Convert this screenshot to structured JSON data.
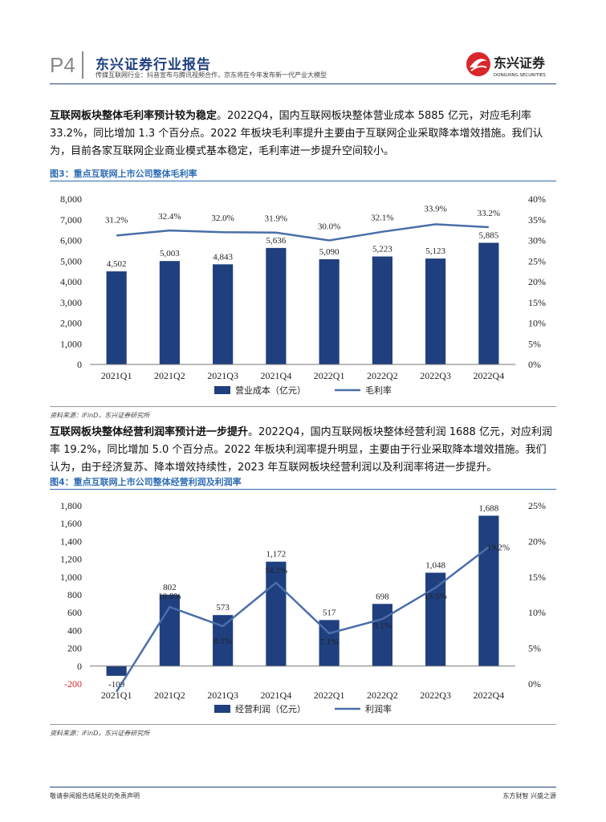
{
  "header": {
    "page_no": "P4",
    "report_title": "东兴证券行业报告",
    "subtitle": "传媒互联网行业：抖音宣布与腾讯视频合作，京东将在今年发布新一代产业大模型",
    "logo_text": "东兴证券",
    "logo_en": "DONGXING SECURITIES"
  },
  "para1": {
    "bold": "互联网板块整体毛利率预计较为稳定",
    "text": "。2022Q4，国内互联网板块整体营业成本 5885 亿元，对应毛利率 33.2%，同比增加 1.3 个百分点。2022 年板块毛利率提升主要由于互联网企业采取降本增效措施。我们认为，目前各家互联网企业商业模式基本稳定，毛利率进一步提升空间较小。"
  },
  "fig3": {
    "label": "图3：重点互联网上市公司整体毛利率"
  },
  "source1": "资料来源：iFinD，东兴证券研究所",
  "para2": {
    "bold": "互联网板块整体经营利润率预计进一步提升",
    "text": "。2022Q4，国内互联网板块整体经营利润 1688 亿元，对应利润率 19.2%，同比增加 5.0 个百分点。2022 年板块利润率提升明显，主要由于行业采取降本增效措施。我们认为，由于经济复苏、降本增效持续性，2023 年互联网板块经营利润以及利润率将进一步提升。"
  },
  "fig4": {
    "label": "图4：重点互联网上市公司整体经营利润及利润率"
  },
  "source2": "资料来源：iFinD，东兴证券研究所",
  "footer": {
    "left": "敬请参阅报告结尾处的免责声明",
    "right": "东方财智 兴盛之源"
  },
  "colors": {
    "bar": "#1f3f7f",
    "line": "#4a6ea9",
    "accent": "#2e6db5",
    "negative": "#d9262b"
  },
  "chart_data": [
    {
      "type": "bar",
      "categories": [
        "2021Q1",
        "2021Q2",
        "2021Q3",
        "2021Q4",
        "2022Q1",
        "2022Q2",
        "2022Q3",
        "2022Q4"
      ],
      "series": [
        {
          "name": "营业成本（亿元）",
          "type": "bar",
          "axis": "left",
          "values": [
            4502,
            5003,
            4843,
            5636,
            5090,
            5223,
            5123,
            5885
          ],
          "labels": [
            "4,502",
            "5,003",
            "4,843",
            "5,636",
            "5,090",
            "5,223",
            "5,123",
            "5,885"
          ]
        },
        {
          "name": "毛利率",
          "type": "line",
          "axis": "right",
          "values": [
            31.2,
            32.4,
            32.0,
            31.9,
            30.0,
            32.1,
            33.9,
            33.2
          ],
          "labels": [
            "31.2%",
            "32.4%",
            "32.0%",
            "31.9%",
            "30.0%",
            "32.1%",
            "33.9%",
            "33.2%"
          ]
        }
      ],
      "ylim": [
        0,
        8000
      ],
      "y_ticks": [
        "0",
        "1,000",
        "2,000",
        "3,000",
        "4,000",
        "5,000",
        "6,000",
        "7,000",
        "8,000"
      ],
      "y2lim": [
        0,
        40
      ],
      "y2_ticks": [
        "0%",
        "5%",
        "10%",
        "15%",
        "20%",
        "25%",
        "30%",
        "35%",
        "40%"
      ],
      "legend": "bottom"
    },
    {
      "type": "bar",
      "categories": [
        "2021Q1",
        "2021Q2",
        "2021Q3",
        "2021Q4",
        "2022Q1",
        "2022Q2",
        "2022Q3",
        "2022Q4"
      ],
      "series": [
        {
          "name": "经营利润（亿元）",
          "type": "bar",
          "axis": "left",
          "values": [
            -109,
            802,
            573,
            1172,
            517,
            698,
            1048,
            1688
          ],
          "labels": [
            "-109",
            "802",
            "573",
            "1,172",
            "517",
            "698",
            "1,048",
            "1,688"
          ]
        },
        {
          "name": "利润率",
          "type": "line",
          "axis": "right",
          "values": [
            -1.1,
            10.8,
            8.1,
            14.2,
            7.1,
            9.1,
            13.5,
            19.2
          ],
          "labels": [
            "",
            "10.8%",
            "8.1%",
            "14.2%",
            "7.1%",
            "9.1%",
            "13.5%",
            "19.2%"
          ]
        }
      ],
      "ylim": [
        -200,
        1800
      ],
      "y_ticks": [
        "-200",
        "0",
        "200",
        "400",
        "600",
        "800",
        "1,000",
        "1,200",
        "1,400",
        "1,600",
        "1,800"
      ],
      "y2lim": [
        0,
        25
      ],
      "y2_ticks": [
        "0%",
        "5%",
        "10%",
        "15%",
        "20%",
        "25%"
      ],
      "legend": "bottom"
    }
  ]
}
